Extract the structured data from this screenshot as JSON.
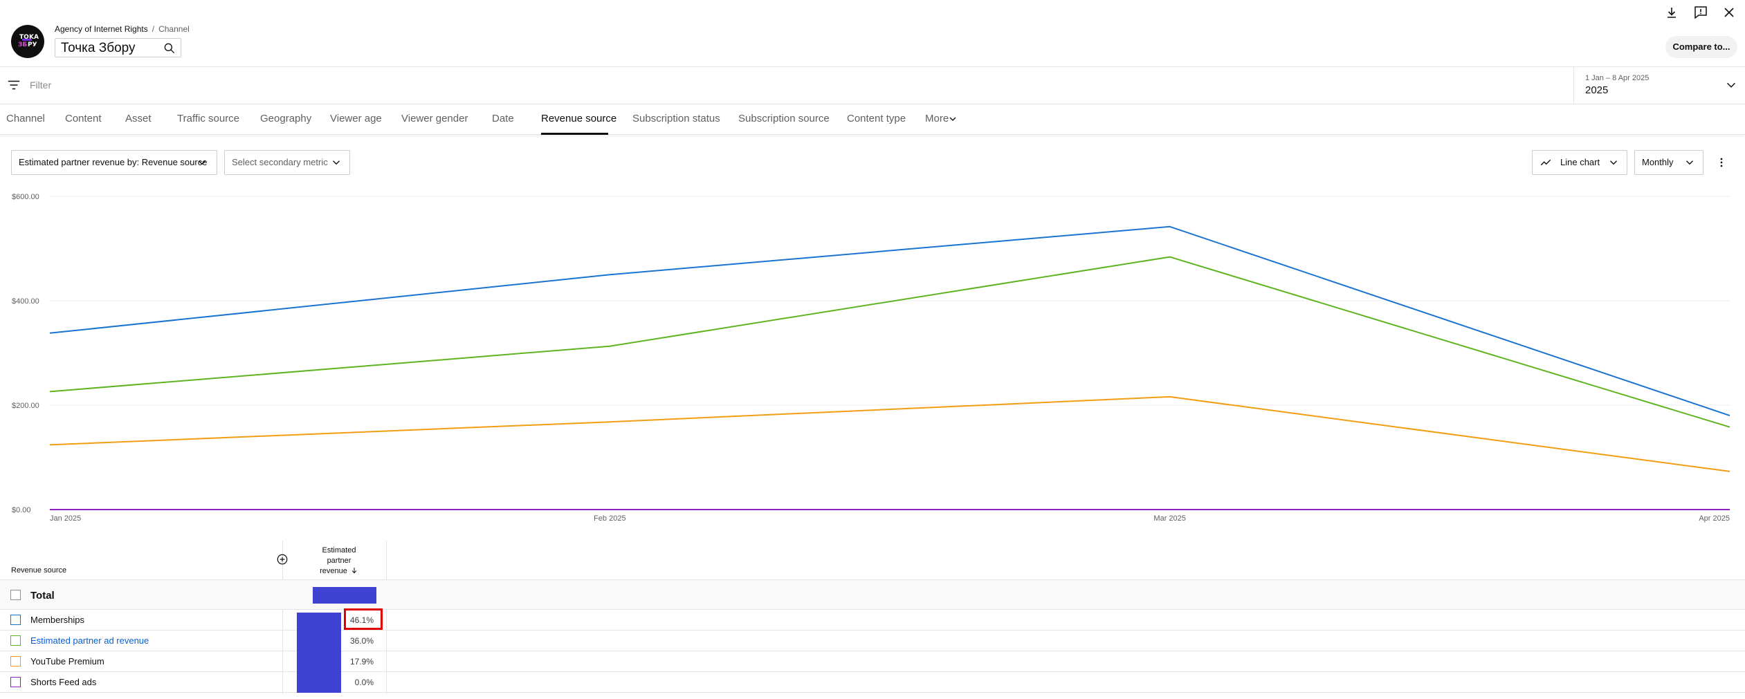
{
  "header": {
    "breadcrumb_parent": "Agency of Internet Rights",
    "breadcrumb_separator": "/",
    "breadcrumb_current": "Channel",
    "channel_name": "Точка Збору",
    "compare_label": "Compare to..."
  },
  "filter": {
    "placeholder": "Filter",
    "date_range": "1 Jan – 8 Apr 2025",
    "date_label": "2025"
  },
  "tabs": [
    {
      "label": "Channel"
    },
    {
      "label": "Content"
    },
    {
      "label": "Asset"
    },
    {
      "label": "Traffic source"
    },
    {
      "label": "Geography"
    },
    {
      "label": "Viewer age"
    },
    {
      "label": "Viewer gender"
    },
    {
      "label": "Date"
    },
    {
      "label": "Revenue source",
      "active": true
    },
    {
      "label": "Subscription status"
    },
    {
      "label": "Subscription source"
    },
    {
      "label": "Content type"
    },
    {
      "label": "More"
    }
  ],
  "controls": {
    "primary_metric": "Estimated partner revenue by: Revenue source",
    "secondary_metric": "Select secondary metric",
    "chart_type": "Line chart",
    "interval": "Monthly"
  },
  "chart_data": {
    "type": "line",
    "x": [
      "Jan 2025",
      "Feb 2025",
      "Mar 2025",
      "Apr 2025"
    ],
    "yticks": [
      "$0.00",
      "$200.00",
      "$400.00",
      "$600.00"
    ],
    "ylim": [
      0,
      600
    ],
    "grid": true,
    "series": [
      {
        "name": "Memberships",
        "color": "#1a73d0",
        "values": [
          338,
          450,
          542,
          180
        ]
      },
      {
        "name": "Estimated partner ad revenue",
        "color": "#5fb31f",
        "values": [
          226,
          313,
          484,
          158
        ]
      },
      {
        "name": "YouTube Premium",
        "color": "#f29d12",
        "values": [
          124,
          168,
          216,
          73
        ]
      },
      {
        "name": "Shorts Feed ads",
        "color": "#8f1fbf",
        "values": [
          0,
          0,
          0,
          0
        ]
      }
    ]
  },
  "table": {
    "column_header": "Revenue source",
    "metric_header_l1": "Estimated",
    "metric_header_l2": "partner",
    "metric_header_l3": "revenue",
    "total_label": "Total",
    "rows": [
      {
        "label": "Memberships",
        "pct": "46.1%",
        "color": "#1a73d0"
      },
      {
        "label": "Estimated partner ad revenue",
        "pct": "36.0%",
        "color": "#5fb31f"
      },
      {
        "label": "YouTube Premium",
        "pct": "17.9%",
        "color": "#f29d12"
      },
      {
        "label": "Shorts Feed ads",
        "pct": "0.0%",
        "color": "#8f1fbf"
      }
    ]
  }
}
